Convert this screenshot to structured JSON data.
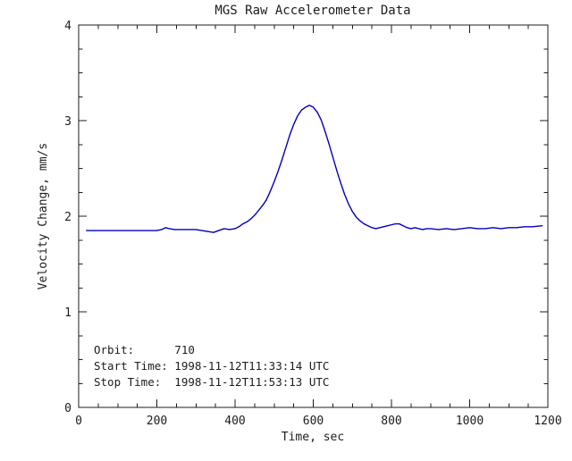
{
  "page": {
    "background": "#ffffff"
  },
  "chart_data": {
    "type": "line",
    "title": "MGS Raw Accelerometer Data",
    "xlabel": "Time, sec",
    "ylabel": "Velocity Change, mm/s",
    "xlim": [
      0,
      1200
    ],
    "ylim": [
      0,
      4
    ],
    "xticks": [
      0,
      200,
      400,
      600,
      800,
      1000,
      1200
    ],
    "yticks": [
      0,
      1,
      2,
      3,
      4
    ],
    "x_minor_step": 50,
    "y_minor_step": 0.25,
    "grid": false,
    "legend": "none",
    "line_color": "#0000bb",
    "axis_color": "#1c1c1c",
    "text_color": "#1c1c1c",
    "annotations": [
      "Orbit:      710",
      "Start Time: 1998-11-12T11:33:14 UTC",
      "Stop Time:  1998-11-12T11:53:13 UTC"
    ],
    "series": [
      {
        "name": "velocity-change",
        "points": [
          [
            20,
            1.85
          ],
          [
            40,
            1.85
          ],
          [
            60,
            1.85
          ],
          [
            80,
            1.85
          ],
          [
            100,
            1.85
          ],
          [
            120,
            1.85
          ],
          [
            140,
            1.85
          ],
          [
            160,
            1.85
          ],
          [
            180,
            1.85
          ],
          [
            200,
            1.85
          ],
          [
            212,
            1.86
          ],
          [
            222,
            1.88
          ],
          [
            232,
            1.87
          ],
          [
            245,
            1.86
          ],
          [
            260,
            1.86
          ],
          [
            280,
            1.86
          ],
          [
            300,
            1.86
          ],
          [
            315,
            1.85
          ],
          [
            330,
            1.84
          ],
          [
            345,
            1.83
          ],
          [
            358,
            1.85
          ],
          [
            372,
            1.87
          ],
          [
            385,
            1.86
          ],
          [
            400,
            1.87
          ],
          [
            410,
            1.89
          ],
          [
            420,
            1.92
          ],
          [
            430,
            1.94
          ],
          [
            440,
            1.97
          ],
          [
            450,
            2.01
          ],
          [
            460,
            2.06
          ],
          [
            470,
            2.11
          ],
          [
            480,
            2.17
          ],
          [
            490,
            2.26
          ],
          [
            500,
            2.36
          ],
          [
            510,
            2.47
          ],
          [
            520,
            2.59
          ],
          [
            530,
            2.72
          ],
          [
            540,
            2.85
          ],
          [
            550,
            2.96
          ],
          [
            560,
            3.05
          ],
          [
            570,
            3.11
          ],
          [
            580,
            3.14
          ],
          [
            590,
            3.16
          ],
          [
            600,
            3.14
          ],
          [
            610,
            3.09
          ],
          [
            620,
            3.01
          ],
          [
            630,
            2.89
          ],
          [
            640,
            2.76
          ],
          [
            650,
            2.62
          ],
          [
            660,
            2.48
          ],
          [
            670,
            2.35
          ],
          [
            680,
            2.23
          ],
          [
            690,
            2.13
          ],
          [
            700,
            2.05
          ],
          [
            710,
            1.99
          ],
          [
            720,
            1.95
          ],
          [
            730,
            1.92
          ],
          [
            740,
            1.9
          ],
          [
            750,
            1.88
          ],
          [
            760,
            1.87
          ],
          [
            770,
            1.88
          ],
          [
            780,
            1.89
          ],
          [
            790,
            1.9
          ],
          [
            800,
            1.91
          ],
          [
            810,
            1.92
          ],
          [
            820,
            1.92
          ],
          [
            830,
            1.9
          ],
          [
            840,
            1.88
          ],
          [
            850,
            1.87
          ],
          [
            860,
            1.88
          ],
          [
            870,
            1.87
          ],
          [
            880,
            1.86
          ],
          [
            890,
            1.87
          ],
          [
            900,
            1.87
          ],
          [
            920,
            1.86
          ],
          [
            940,
            1.87
          ],
          [
            960,
            1.86
          ],
          [
            980,
            1.87
          ],
          [
            1000,
            1.88
          ],
          [
            1020,
            1.87
          ],
          [
            1040,
            1.87
          ],
          [
            1060,
            1.88
          ],
          [
            1080,
            1.87
          ],
          [
            1100,
            1.88
          ],
          [
            1120,
            1.88
          ],
          [
            1140,
            1.89
          ],
          [
            1160,
            1.89
          ],
          [
            1185,
            1.9
          ]
        ]
      }
    ]
  }
}
